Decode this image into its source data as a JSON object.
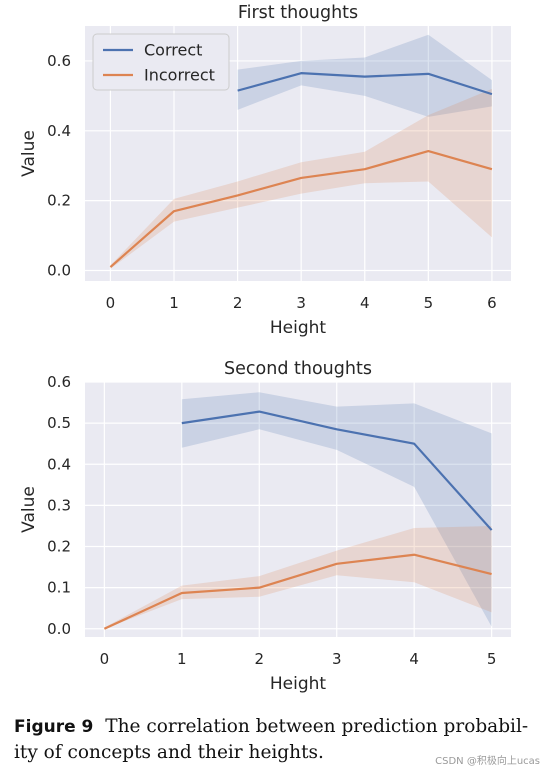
{
  "colors": {
    "correct": "#4c72b0",
    "incorrect": "#dd8452"
  },
  "chart_data": [
    {
      "type": "line",
      "title": "First thoughts",
      "xlabel": "Height",
      "ylabel": "Value",
      "xlim": [
        -0.4,
        6.3
      ],
      "ylim": [
        -0.03,
        0.7
      ],
      "xticks": [
        "0",
        "1",
        "2",
        "3",
        "4",
        "5",
        "6"
      ],
      "yticks": [
        "0.0",
        "0.2",
        "0.4",
        "0.6"
      ],
      "legend": {
        "position": "upper-left",
        "entries": [
          "Correct",
          "Incorrect"
        ]
      },
      "series": [
        {
          "name": "Correct",
          "x": [
            2,
            3,
            4,
            5,
            6
          ],
          "values": [
            0.515,
            0.565,
            0.555,
            0.563,
            0.505
          ],
          "lower": [
            0.46,
            0.53,
            0.5,
            0.44,
            0.47
          ],
          "upper": [
            0.575,
            0.6,
            0.61,
            0.675,
            0.545
          ]
        },
        {
          "name": "Incorrect",
          "x": [
            0,
            1,
            2,
            3,
            4,
            5,
            6
          ],
          "values": [
            0.01,
            0.17,
            0.215,
            0.265,
            0.29,
            0.342,
            0.29
          ],
          "lower": [
            0.005,
            0.14,
            0.18,
            0.22,
            0.25,
            0.255,
            0.095
          ],
          "upper": [
            0.015,
            0.205,
            0.255,
            0.31,
            0.34,
            0.445,
            0.52
          ]
        }
      ]
    },
    {
      "type": "line",
      "title": "Second thoughts",
      "xlabel": "Height",
      "ylabel": "Value",
      "xlim": [
        -0.25,
        5.25
      ],
      "ylim": [
        -0.02,
        0.6
      ],
      "xticks": [
        "0",
        "1",
        "2",
        "3",
        "4",
        "5"
      ],
      "yticks": [
        "0.0",
        "0.1",
        "0.2",
        "0.3",
        "0.4",
        "0.5",
        "0.6"
      ],
      "series": [
        {
          "name": "Correct",
          "x": [
            1,
            2,
            3,
            4,
            5
          ],
          "values": [
            0.5,
            0.528,
            0.485,
            0.45,
            0.24
          ],
          "lower": [
            0.44,
            0.485,
            0.435,
            0.345,
            0.005
          ],
          "upper": [
            0.558,
            0.575,
            0.54,
            0.548,
            0.475
          ]
        },
        {
          "name": "Incorrect",
          "x": [
            0,
            1,
            2,
            3,
            4,
            5
          ],
          "values": [
            0.0,
            0.087,
            0.1,
            0.158,
            0.18,
            0.133
          ],
          "lower": [
            0.0,
            0.072,
            0.078,
            0.13,
            0.113,
            0.04
          ],
          "upper": [
            0.003,
            0.105,
            0.128,
            0.19,
            0.245,
            0.25
          ]
        }
      ]
    }
  ],
  "caption": {
    "label": "Figure 9",
    "text": "The correlation between prediction probabil-ity of concepts and their heights."
  },
  "watermark": "CSDN @积极向上ucas"
}
